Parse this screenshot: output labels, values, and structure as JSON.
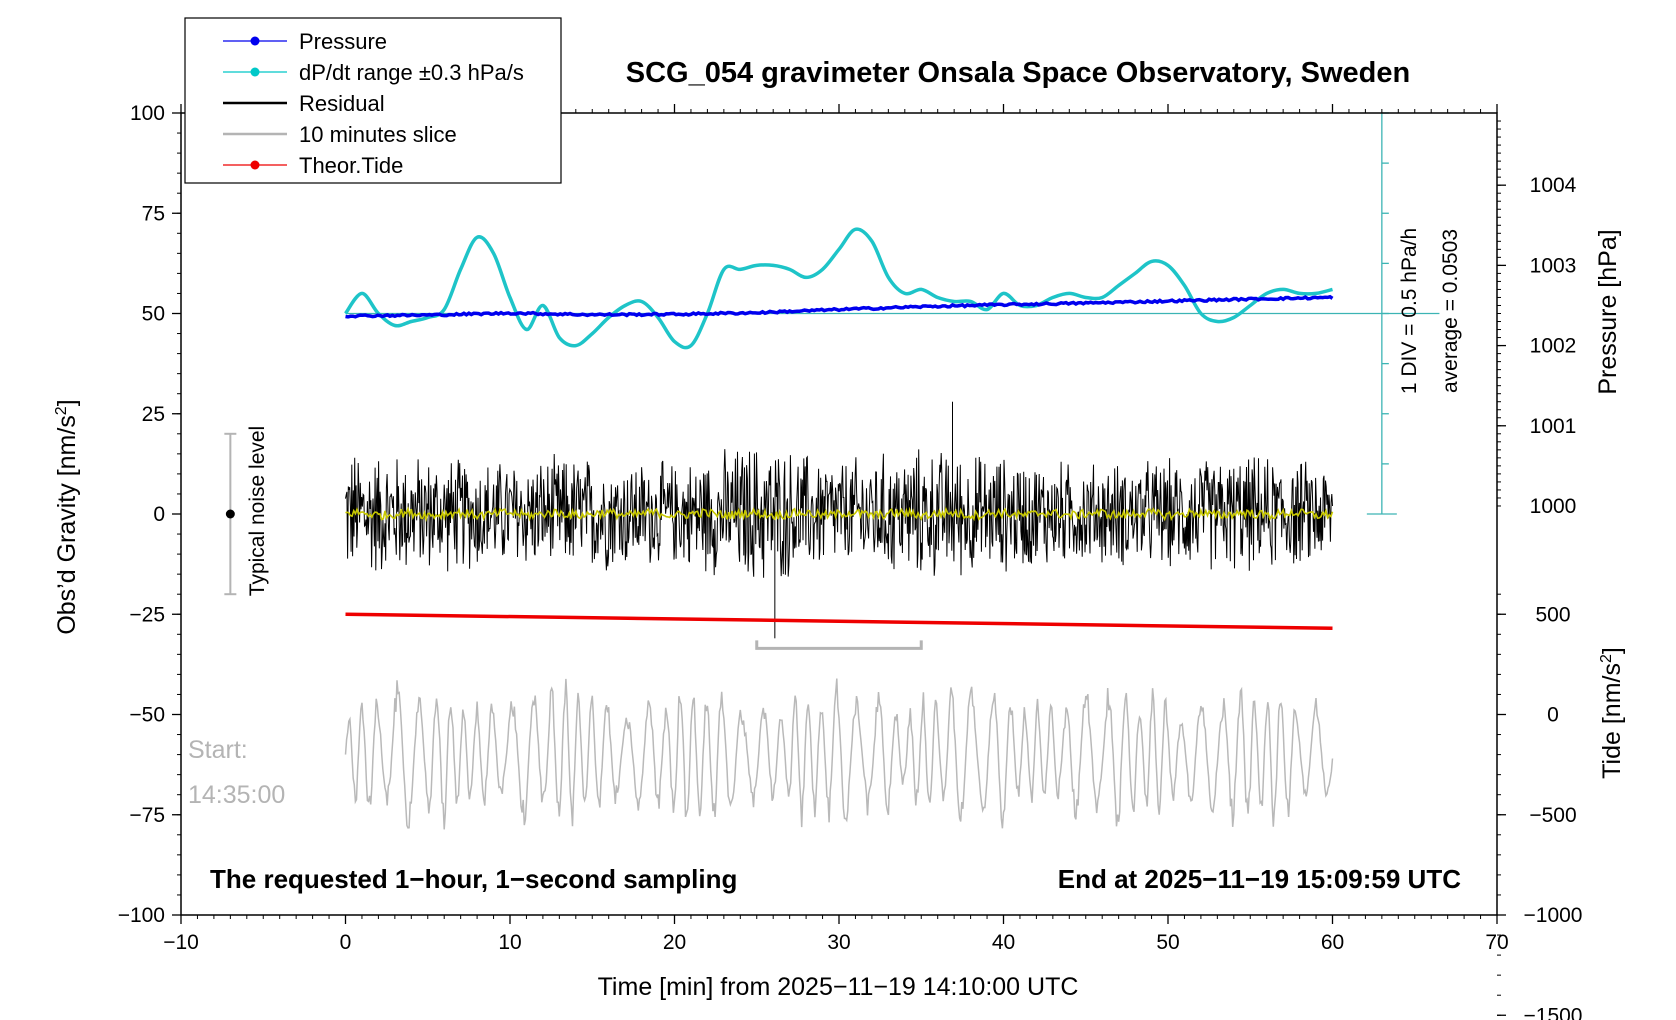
{
  "chart_data": {
    "type": "line",
    "title": "SCG_054 gravimeter Onsala Space Observatory, Sweden",
    "xlabel": "Time [min] from 2025−11−19 14:10:00 UTC",
    "ylabel_left": "Obs’d Gravity [nm/s",
    "ylabel_left_sup": "2",
    "ylabel_left_end": "]",
    "ylabel_right_pressure": "Pressure [hPa]",
    "ylabel_right_tide": "Tide [nm/s",
    "ylabel_right_tide_sup": "2",
    "ylabel_right_tide_end": "]",
    "xlim": [
      -10,
      70
    ],
    "ylim": [
      -100,
      100
    ],
    "x_ticks": [
      -10,
      0,
      10,
      20,
      30,
      40,
      50,
      60,
      70
    ],
    "x_tick_labels": [
      "−10",
      "0",
      "10",
      "20",
      "30",
      "40",
      "50",
      "60",
      "70"
    ],
    "y_ticks": [
      -100,
      -75,
      -50,
      -25,
      0,
      25,
      50,
      75,
      100
    ],
    "y_tick_labels": [
      "−100",
      "−75",
      "−50",
      "−25",
      "0",
      "25",
      "50",
      "75",
      "100"
    ],
    "pressure_axis": {
      "ticks": [
        1001,
        1002,
        1003,
        1004
      ],
      "labels": [
        "1001",
        "1002",
        "1003",
        "1004"
      ],
      "ref_hpa": 1002.4,
      "ref_gravity": 50,
      "gravity_per_hpa": 20
    },
    "tide_axis": {
      "ticks": [
        -1500,
        -1000,
        -500,
        0,
        500,
        1000
      ],
      "labels": [
        "−1500",
        "−1000",
        "−500",
        "0",
        "500",
        "1000"
      ],
      "gravity_per_nms2": 0.05,
      "offset_gravity": -50
    },
    "legend": {
      "placement": "top-left",
      "entries": [
        {
          "label": "Pressure",
          "color": "#0000ee",
          "marker": true
        },
        {
          "label": "dP/dt range ±0.3 hPa/s",
          "color": "#00c8c8",
          "marker": true
        },
        {
          "label": "Residual",
          "color": "#000000",
          "marker": false
        },
        {
          "label": "10 minutes slice",
          "color": "#b4b4b4",
          "marker": false
        },
        {
          "label": "Theor.Tide",
          "color": "#ee0000",
          "marker": true
        }
      ]
    },
    "colors": {
      "pressure": "#0000ee",
      "dpdt": "#1ec4c8",
      "residual": "#000000",
      "residual_smooth": "#c8c800",
      "slice": "#b9b9b9",
      "tide": "#ee0000",
      "scale_bar": "#3cb4b4",
      "noise_bar": "#b4b4b4"
    },
    "series": [
      {
        "name": "Pressure",
        "x": [
          0,
          5,
          10,
          15,
          20,
          25,
          30,
          35,
          40,
          45,
          50,
          55,
          60
        ],
        "y": [
          49.4,
          49.6,
          50.1,
          49.7,
          49.8,
          50.2,
          51.0,
          51.7,
          52.2,
          52.6,
          53.1,
          53.6,
          54.0
        ]
      },
      {
        "name": "dP/dt range ±0.3 hPa/s",
        "x": [
          0,
          1,
          2,
          3,
          4,
          5,
          6,
          7,
          8,
          9,
          10,
          11,
          12,
          13,
          14,
          15,
          16,
          17,
          18,
          19,
          20,
          21,
          22,
          23,
          24,
          25,
          26,
          27,
          28,
          29,
          30,
          31,
          32,
          33,
          34,
          35,
          36,
          37,
          38,
          39,
          40,
          41,
          42,
          43,
          44,
          45,
          46,
          47,
          48,
          49,
          50,
          51,
          52,
          53,
          54,
          55,
          56,
          57,
          58,
          59,
          60
        ],
        "y": [
          50,
          55,
          50,
          47,
          48,
          49,
          51,
          61,
          69,
          65,
          54,
          46,
          52,
          44,
          42,
          45,
          49,
          52,
          53,
          49,
          43,
          42,
          50,
          61,
          61,
          62,
          62,
          61,
          59,
          61,
          66,
          71,
          68,
          59,
          55,
          56,
          54,
          53,
          53,
          51,
          55,
          52,
          52,
          54,
          55,
          54,
          54,
          57,
          60,
          63,
          62,
          57,
          50,
          48,
          49,
          52,
          55,
          56,
          55,
          55,
          56
        ]
      },
      {
        "name": "Residual",
        "envelope_x": [
          0,
          5,
          10,
          15,
          20,
          25,
          30,
          35,
          40,
          45,
          50,
          55,
          60
        ],
        "envelope_y": [
          18,
          16,
          15,
          16,
          14,
          20,
          15,
          18,
          16,
          14,
          15,
          16,
          14
        ],
        "y_extremes": {
          "max": 28,
          "min": -31
        }
      },
      {
        "name": "10 minutes slice",
        "x_range": [
          0,
          60
        ],
        "center": -60,
        "amplitude": 15
      },
      {
        "name": "Theor.Tide",
        "x": [
          0,
          60
        ],
        "y_tide": [
          500,
          430
        ]
      }
    ],
    "slice_bracket": {
      "x": [
        25,
        35
      ],
      "y": -33.5
    },
    "noise_bar": {
      "x": -7,
      "y": [
        -20,
        20
      ]
    },
    "scale_bar": {
      "x": 63,
      "y": [
        0,
        100
      ]
    },
    "annotations": {
      "typical_noise": "Typical noise level",
      "div": "1 DIV = 0.5 hPa/h",
      "average": "average = 0.0503",
      "start_label": "Start:",
      "start_time": "14:35:00",
      "bottom_left": "The requested 1−hour, 1−second sampling",
      "bottom_right": "End at 2025−11−19 15:09:59 UTC"
    },
    "grid": false
  }
}
